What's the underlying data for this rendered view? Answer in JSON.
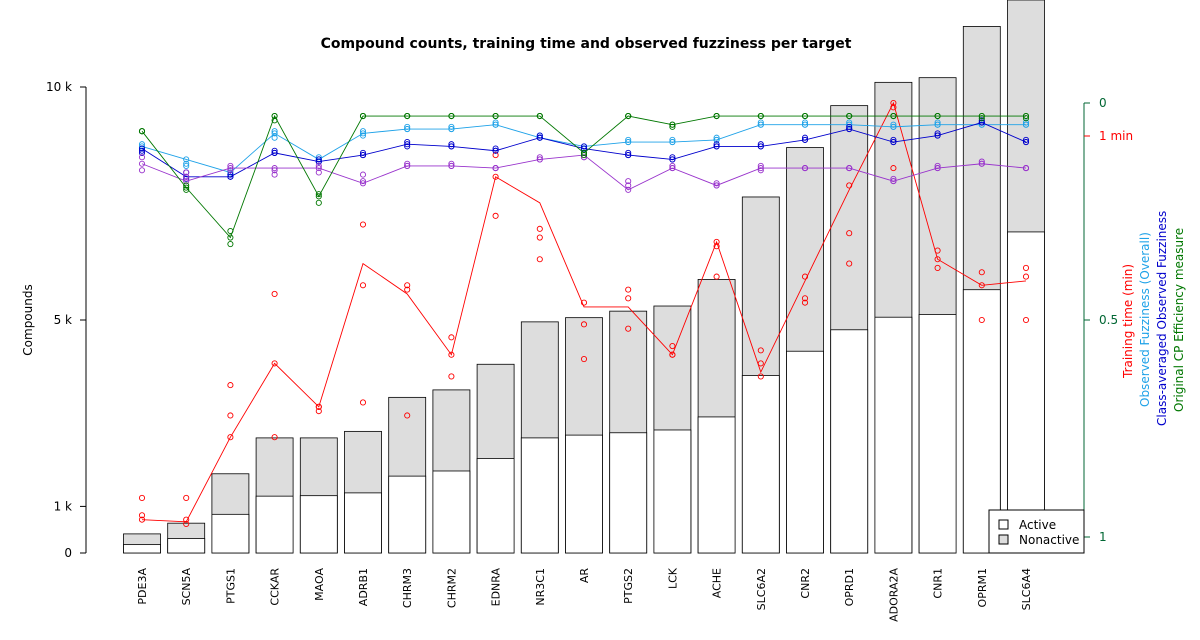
{
  "chart_data": {
    "type": "bar",
    "title": "Compound counts, training time and observed fuzziness per target",
    "categories": [
      "PDE3A",
      "SCN5A",
      "PTGS1",
      "CCKAR",
      "MAOA",
      "ADRB1",
      "CHRM3",
      "CHRM2",
      "EDNRA",
      "NR3C1",
      "AR",
      "PTGS2",
      "LCK",
      "ACHE",
      "SLC6A2",
      "CNR2",
      "OPRD1",
      "ADORA2A",
      "CNR1",
      "OPRM1",
      "SLC6A4"
    ],
    "stacked_bars": {
      "active": [
        180,
        310,
        830,
        1220,
        1230,
        1290,
        1650,
        1760,
        2030,
        2470,
        2530,
        2580,
        2640,
        2920,
        3810,
        4330,
        4790,
        5060,
        5120,
        5650,
        6890
      ],
      "nonactive": [
        410,
        640,
        1700,
        2470,
        2470,
        2610,
        3340,
        3500,
        4050,
        4960,
        5050,
        5190,
        5300,
        5870,
        7640,
        8700,
        9600,
        10100,
        10200,
        11300,
        13750
      ]
    },
    "left_axis": {
      "label": "Compounds",
      "ticks": [
        {
          "value": 0,
          "label": "0"
        },
        {
          "value": 1000,
          "label": "1 k"
        },
        {
          "value": 5000,
          "label": "5 k"
        },
        {
          "value": 10000,
          "label": "10 k"
        }
      ],
      "ylim": [
        0,
        10000
      ]
    },
    "right_axis": {
      "color": "#006633",
      "ticks": [
        {
          "value": 1.0,
          "label": "0"
        },
        {
          "value": 0.5,
          "label": "0.5"
        },
        {
          "value": 0.0,
          "label": "1"
        }
      ],
      "time_tick": {
        "label": "1 min",
        "color": "#ff0000"
      },
      "ylim": [
        0,
        1
      ]
    },
    "right_labels": [
      {
        "text": "Training time (min)",
        "color": "#ff0000"
      },
      {
        "text": "Observed Fuzziness (Overall)",
        "color": "#1fa2e8"
      },
      {
        "text": "Class-averaged Observed Fuzziness",
        "color": "#0000cc"
      },
      {
        "text": "Original CP Efficiency measure",
        "color": "#007700"
      }
    ],
    "legend": {
      "placement": "bottom-right",
      "entries": [
        {
          "label": "Active",
          "fill": "#ffffff"
        },
        {
          "label": "Nonactive",
          "fill": "#dddddd"
        }
      ]
    },
    "lines": [
      {
        "key": "training_time",
        "color": "#ff0000",
        "values": [
          0.04,
          0.035,
          0.23,
          0.4,
          0.3,
          0.63,
          0.56,
          0.42,
          0.83,
          0.77,
          0.53,
          0.53,
          0.42,
          0.68,
          0.38,
          0.59,
          0.8,
          1.0,
          0.64,
          0.58,
          0.59
        ],
        "points": [
          [
            0.09,
            0.05,
            0.04
          ],
          [
            0.09,
            0.04,
            0.03
          ],
          [
            0.35,
            0.28,
            0.23
          ],
          [
            0.56,
            0.4,
            0.23
          ],
          [
            0.3,
            0.3,
            0.29
          ],
          [
            0.72,
            0.58,
            0.31
          ],
          [
            0.58,
            0.57,
            0.28
          ],
          [
            0.46,
            0.42,
            0.37
          ],
          [
            0.88,
            0.83,
            0.74
          ],
          [
            0.71,
            0.69,
            0.64
          ],
          [
            0.54,
            0.49,
            0.41
          ],
          [
            0.57,
            0.55,
            0.48
          ],
          [
            0.44,
            0.42,
            0.42
          ],
          [
            0.68,
            0.67,
            0.6
          ],
          [
            0.43,
            0.4,
            0.37
          ],
          [
            0.6,
            0.55,
            0.54
          ],
          [
            0.81,
            0.7,
            0.63
          ],
          [
            0.99,
            1.0,
            0.85
          ],
          [
            0.66,
            0.64,
            0.62
          ],
          [
            0.61,
            0.58,
            0.5
          ],
          [
            0.62,
            0.6,
            0.5
          ]
        ]
      },
      {
        "key": "observed_fuzziness_overall",
        "color": "#1fa2e8",
        "values": [
          0.9,
          0.87,
          0.84,
          0.93,
          0.87,
          0.93,
          0.94,
          0.94,
          0.95,
          0.92,
          0.9,
          0.91,
          0.91,
          0.915,
          0.95,
          0.95,
          0.95,
          0.945,
          0.95,
          0.95,
          0.95
        ],
        "points": [
          [
            0.905,
            0.9,
            0.895
          ],
          [
            0.87,
            0.86,
            0.855
          ],
          [
            0.845,
            0.84,
            0.835
          ],
          [
            0.935,
            0.93,
            0.92
          ],
          [
            0.875,
            0.87,
            0.865
          ],
          [
            0.935,
            0.93,
            0.925
          ],
          [
            0.945,
            0.94,
            0.94
          ],
          [
            0.945,
            0.94,
            0.94
          ],
          [
            0.955,
            0.95,
            0.95
          ],
          [
            0.925,
            0.92,
            0.92
          ],
          [
            0.9,
            0.895,
            0.895
          ],
          [
            0.915,
            0.91,
            0.91
          ],
          [
            0.915,
            0.91,
            0.91
          ],
          [
            0.92,
            0.915,
            0.915
          ],
          [
            0.955,
            0.95,
            0.95
          ],
          [
            0.955,
            0.95,
            0.95
          ],
          [
            0.955,
            0.95,
            0.95
          ],
          [
            0.95,
            0.945,
            0.945
          ],
          [
            0.955,
            0.95,
            0.95
          ],
          [
            0.955,
            0.95,
            0.95
          ],
          [
            0.955,
            0.95,
            0.95
          ]
        ]
      },
      {
        "key": "class_averaged_fuzziness",
        "color": "#0000cc",
        "values": [
          0.895,
          0.83,
          0.83,
          0.885,
          0.865,
          0.88,
          0.905,
          0.9,
          0.89,
          0.92,
          0.895,
          0.88,
          0.87,
          0.9,
          0.9,
          0.915,
          0.94,
          0.91,
          0.925,
          0.955,
          0.91
        ],
        "points": [
          [
            0.895,
            0.89,
            0.885
          ],
          [
            0.84,
            0.83,
            0.825
          ],
          [
            0.835,
            0.83,
            0.83
          ],
          [
            0.89,
            0.885,
            0.885
          ],
          [
            0.87,
            0.865,
            0.865
          ],
          [
            0.885,
            0.88,
            0.88
          ],
          [
            0.91,
            0.905,
            0.9
          ],
          [
            0.905,
            0.9,
            0.9
          ],
          [
            0.895,
            0.89,
            0.89
          ],
          [
            0.925,
            0.92,
            0.92
          ],
          [
            0.9,
            0.895,
            0.885
          ],
          [
            0.885,
            0.88,
            0.88
          ],
          [
            0.875,
            0.87,
            0.87
          ],
          [
            0.905,
            0.9,
            0.9
          ],
          [
            0.905,
            0.9,
            0.9
          ],
          [
            0.92,
            0.915,
            0.915
          ],
          [
            0.945,
            0.94,
            0.94
          ],
          [
            0.915,
            0.91,
            0.91
          ],
          [
            0.93,
            0.925,
            0.925
          ],
          [
            0.96,
            0.955,
            0.955
          ],
          [
            0.915,
            0.91,
            0.91
          ]
        ]
      },
      {
        "key": "class_averaged_purple",
        "color": "#9933cc",
        "values": [
          0.86,
          0.82,
          0.85,
          0.85,
          0.85,
          0.815,
          0.855,
          0.855,
          0.85,
          0.87,
          0.88,
          0.8,
          0.85,
          0.81,
          0.85,
          0.85,
          0.85,
          0.82,
          0.85,
          0.86,
          0.85
        ],
        "points": [
          [
            0.875,
            0.86,
            0.845
          ],
          [
            0.84,
            0.83,
            0.82
          ],
          [
            0.855,
            0.85,
            0.845
          ],
          [
            0.85,
            0.845,
            0.835
          ],
          [
            0.855,
            0.85,
            0.84
          ],
          [
            0.835,
            0.82,
            0.815
          ],
          [
            0.86,
            0.855,
            0.855
          ],
          [
            0.86,
            0.855,
            0.855
          ],
          [
            0.85,
            0.85,
            0.85
          ],
          [
            0.875,
            0.87,
            0.87
          ],
          [
            0.88,
            0.875,
            0.875
          ],
          [
            0.82,
            0.81,
            0.8
          ],
          [
            0.855,
            0.85,
            0.85
          ],
          [
            0.815,
            0.81,
            0.81
          ],
          [
            0.855,
            0.85,
            0.845
          ],
          [
            0.85,
            0.85,
            0.85
          ],
          [
            0.85,
            0.85,
            0.85
          ],
          [
            0.825,
            0.82,
            0.82
          ],
          [
            0.855,
            0.85,
            0.85
          ],
          [
            0.865,
            0.86,
            0.86
          ],
          [
            0.85,
            0.85,
            0.85
          ]
        ]
      },
      {
        "key": "cp_efficiency",
        "color": "#007700",
        "values": [
          0.935,
          0.805,
          0.69,
          0.97,
          0.785,
          0.97,
          0.97,
          0.97,
          0.97,
          0.97,
          0.885,
          0.97,
          0.95,
          0.97,
          0.97,
          0.97,
          0.97,
          0.97,
          0.97,
          0.97,
          0.97
        ],
        "points": [
          [
            0.935,
            0.935,
            0.935
          ],
          [
            0.81,
            0.805,
            0.8
          ],
          [
            0.705,
            0.69,
            0.675
          ],
          [
            0.97,
            0.97,
            0.96
          ],
          [
            0.79,
            0.785,
            0.77
          ],
          [
            0.97,
            0.97,
            0.97
          ],
          [
            0.97,
            0.97,
            0.97
          ],
          [
            0.97,
            0.97,
            0.97
          ],
          [
            0.97,
            0.97,
            0.97
          ],
          [
            0.97,
            0.97,
            0.97
          ],
          [
            0.885,
            0.885,
            0.88
          ],
          [
            0.97,
            0.97,
            0.97
          ],
          [
            0.95,
            0.95,
            0.945
          ],
          [
            0.97,
            0.97,
            0.97
          ],
          [
            0.97,
            0.97,
            0.97
          ],
          [
            0.97,
            0.97,
            0.97
          ],
          [
            0.97,
            0.97,
            0.97
          ],
          [
            0.97,
            0.97,
            0.97
          ],
          [
            0.97,
            0.97,
            0.97
          ],
          [
            0.97,
            0.97,
            0.965
          ],
          [
            0.97,
            0.97,
            0.965
          ]
        ]
      }
    ]
  }
}
